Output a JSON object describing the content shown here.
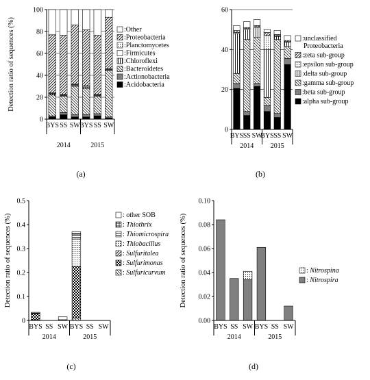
{
  "chart_data": [
    {
      "type": "bar",
      "panel_label": "(a)",
      "categories": [
        "BYS",
        "SS",
        "SW",
        "BYS",
        "SS",
        "SW"
      ],
      "groups": [
        "2014",
        "2015"
      ],
      "ylabel": "Detection ratio of sequences (%)",
      "ylim": [
        0,
        100
      ],
      "yticks": [
        "0",
        "20",
        "40",
        "60",
        "80",
        "100"
      ],
      "ytick_values": [
        0,
        20,
        40,
        60,
        80,
        100
      ],
      "grid": true,
      "legend_position": "right",
      "series": [
        {
          "name": ":Acidobacteria",
          "pattern": "black",
          "values": [
            2,
            4,
            2,
            2,
            3,
            1
          ]
        },
        {
          "name": ":Actionobacteria",
          "pattern": "gray",
          "values": [
            1,
            2,
            2,
            2,
            2,
            1
          ]
        },
        {
          "name": ":Bacteroidetes",
          "pattern": "backslash",
          "values": [
            19,
            15,
            26,
            24,
            16,
            42
          ]
        },
        {
          "name": ":Chloroflexi",
          "pattern": "vlines",
          "values": [
            1,
            0.5,
            1,
            1,
            0.5,
            1
          ]
        },
        {
          "name": ":Firmicutes",
          "pattern": "white",
          "values": [
            0.5,
            0.5,
            0.5,
            1,
            0.5,
            0.5
          ]
        },
        {
          "name": ":Planctomycetes",
          "pattern": "dots",
          "values": [
            0.5,
            0.5,
            0.5,
            0.5,
            0.5,
            0.5
          ]
        },
        {
          "name": ":Proteobacteria",
          "pattern": "slash",
          "values": [
            53,
            54,
            54,
            51,
            54,
            47
          ]
        },
        {
          "name": ":Other",
          "pattern": "white",
          "values": [
            23,
            23.5,
            14,
            18.5,
            23.5,
            7
          ]
        }
      ]
    },
    {
      "type": "bar",
      "panel_label": "(b)",
      "categories": [
        "BYS",
        "SS",
        "SW",
        "BYS",
        "SS",
        "SW"
      ],
      "groups": [
        "2014",
        "2015"
      ],
      "ylim": [
        0,
        60
      ],
      "yticks": [
        "0",
        "20",
        "40",
        "60"
      ],
      "ytick_values": [
        0,
        20,
        40,
        60
      ],
      "grid": true,
      "legend_position": "right",
      "series": [
        {
          "name": ":alpha sub-group",
          "pattern": "black",
          "values": [
            20.5,
            7,
            21.5,
            9,
            6,
            32.5
          ]
        },
        {
          "name": ":beta sub-group",
          "pattern": "gray",
          "values": [
            2.5,
            2,
            1.5,
            3,
            2,
            3
          ]
        },
        {
          "name": ":gamma sub-group",
          "pattern": "backslash",
          "values": [
            5,
            36,
            23,
            4,
            37,
            6
          ]
        },
        {
          "name": ":delta sub-group",
          "pattern": "vlines",
          "values": [
            20,
            5,
            5,
            24,
            1.5,
            2
          ]
        },
        {
          "name": ":epsilon sub-group",
          "pattern": "dots",
          "values": [
            0.5,
            0.5,
            0.5,
            7,
            0.5,
            0.5
          ]
        },
        {
          "name": ":zeta sub-group",
          "pattern": "slash",
          "values": [
            1,
            0.5,
            0.5,
            1.5,
            0.5,
            0.5
          ]
        },
        {
          "name": ":unclassified\nProteobacteria",
          "pattern": "white",
          "values": [
            2.5,
            3,
            3,
            1.5,
            2,
            2.5
          ]
        }
      ]
    },
    {
      "type": "bar",
      "panel_label": "(c)",
      "categories": [
        "BYS",
        "SS",
        "SW",
        "BYS",
        "SS",
        "SW"
      ],
      "groups": [
        "2014",
        "2015"
      ],
      "ylabel": "Detection ratio of sequences (%)",
      "ylim": [
        0,
        0.5
      ],
      "yticks": [
        "0",
        "0.1",
        "0.2",
        "0.3",
        "0.4",
        "0.5"
      ],
      "ytick_values": [
        0,
        0.1,
        0.2,
        0.3,
        0.4,
        0.5
      ],
      "grid": false,
      "legend_position": "right",
      "series": [
        {
          "name": "Sulfuricurvum",
          "prefix": ": ",
          "italic": true,
          "pattern": "backslash",
          "values": [
            0.003,
            0,
            0,
            0.01,
            0,
            0
          ]
        },
        {
          "name": "Sulfurimonas",
          "prefix": ": ",
          "italic": true,
          "pattern": "checker",
          "values": [
            0.024,
            0,
            0.003,
            0.215,
            0,
            0
          ]
        },
        {
          "name": "Sulfuritalea",
          "prefix": ": ",
          "italic": true,
          "pattern": "slash",
          "values": [
            0,
            0,
            0,
            0,
            0,
            0
          ]
        },
        {
          "name": "Thiobacillus",
          "prefix": ": ",
          "italic": true,
          "pattern": "dots",
          "values": [
            0,
            0,
            0,
            0.115,
            0,
            0
          ]
        },
        {
          "name": "Thiomicrospira",
          "prefix": ": ",
          "italic": true,
          "pattern": "hlines",
          "values": [
            0,
            0,
            0,
            0.02,
            0,
            0
          ]
        },
        {
          "name": "Thiothrix",
          "prefix": ": ",
          "italic": true,
          "pattern": "plus",
          "values": [
            0.004,
            0,
            0,
            0.003,
            0,
            0
          ]
        },
        {
          "name": ": other SOB",
          "pattern": "white",
          "values": [
            0.003,
            0,
            0.012,
            0.007,
            0,
            0
          ]
        }
      ]
    },
    {
      "type": "bar",
      "panel_label": "(d)",
      "categories": [
        "BYS",
        "SS",
        "SW",
        "BYS",
        "SS",
        "SW"
      ],
      "groups": [
        "2014",
        "2015"
      ],
      "ylabel": "Detection ratio of sequences (%)",
      "ylim": [
        0,
        0.1
      ],
      "yticks": [
        "0.00",
        "0.02",
        "0.04",
        "0.06",
        "0.08",
        "0.10"
      ],
      "ytick_values": [
        0,
        0.02,
        0.04,
        0.06,
        0.08,
        0.1
      ],
      "grid": false,
      "legend_position": "right",
      "series": [
        {
          "name": "Nitrospira",
          "prefix": ": ",
          "italic": true,
          "pattern": "gray",
          "values": [
            0.084,
            0.035,
            0.034,
            0.061,
            0,
            0.012
          ]
        },
        {
          "name": "Nitrospina",
          "prefix": ": ",
          "italic": true,
          "pattern": "dots",
          "values": [
            0,
            0,
            0.007,
            0,
            0,
            0
          ]
        }
      ]
    }
  ]
}
